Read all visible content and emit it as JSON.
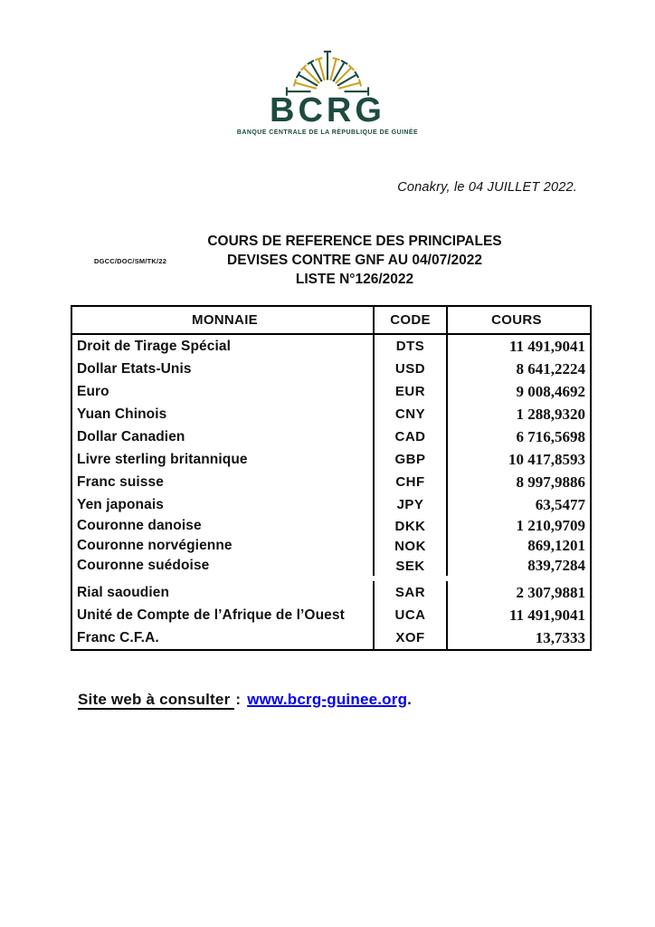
{
  "brand": {
    "logo_text": "BCRG",
    "tagline": "BANQUE CENTRALE DE LA RÉPUBLIQUE DE GUINÉE",
    "green": "#1D4B40",
    "gold": "#C9A227"
  },
  "dateline": "Conakry, le 04 JUILLET 2022.",
  "reference_code": "DGCC/DOC/SM/TK/22",
  "title": {
    "line1": "COURS DE REFERENCE DES PRINCIPALES",
    "line2": "DEVISES CONTRE GNF AU 04/07/2022",
    "line3": "LISTE N°126/2022"
  },
  "table": {
    "headers": {
      "currency": "MONNAIE",
      "code": "CODE",
      "rate": "COURS"
    },
    "rows": [
      {
        "name": "Droit de Tirage Spécial",
        "code": "DTS",
        "rate": "11 491,9041"
      },
      {
        "name": "Dollar Etats-Unis",
        "code": "USD",
        "rate": "8 641,2224"
      },
      {
        "name": "Euro",
        "code": "EUR",
        "rate": "9 008,4692"
      },
      {
        "name": "Yuan Chinois",
        "code": "CNY",
        "rate": "1 288,9320"
      },
      {
        "name": "Dollar Canadien",
        "code": "CAD",
        "rate": "6 716,5698"
      },
      {
        "name": "Livre sterling britannique",
        "code": "GBP",
        "rate": "10 417,8593"
      },
      {
        "name": "Franc suisse",
        "code": "CHF",
        "rate": "8 997,9886"
      },
      {
        "name": "Yen japonais",
        "code": "JPY",
        "rate": "63,5477"
      },
      {
        "name": "Couronne danoise",
        "code": "DKK",
        "rate": "1 210,9709"
      },
      {
        "name": "Couronne norvégienne",
        "code": "NOK",
        "rate": "869,1201"
      },
      {
        "name": "Couronne suédoise",
        "code": "SEK",
        "rate": "839,7284"
      },
      {
        "name": "Rial saoudien",
        "code": "SAR",
        "rate": "2 307,9881"
      },
      {
        "name": "Unité de Compte de l’Afrique de l’Ouest",
        "code": "UCA",
        "rate": "11 491,9041"
      },
      {
        "name": "Franc C.F.A.",
        "code": "XOF",
        "rate": "13,7333"
      }
    ]
  },
  "footer": {
    "label": "Site web à consulter",
    "separator": ":",
    "link": "www.bcrg-guinee.org",
    "suffix": ".",
    "link_color": "#0000EE"
  }
}
